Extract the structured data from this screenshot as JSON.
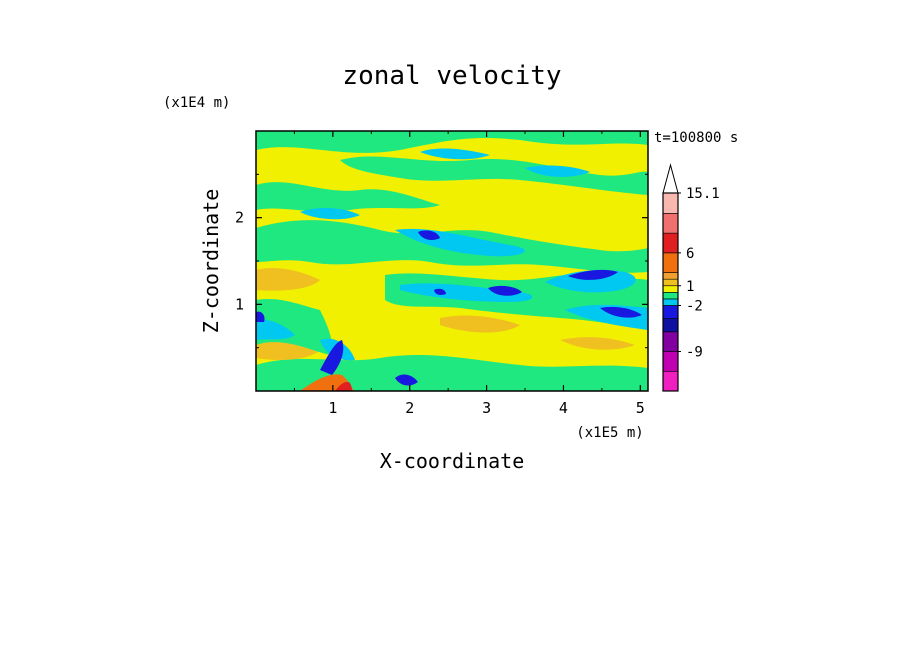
{
  "chart_data": {
    "type": "heatmap",
    "title": "zonal velocity",
    "xlabel": "X-coordinate",
    "ylabel": "Z-coordinate",
    "x_scale_label": "(x1E5 m)",
    "y_scale_label": "(x1E4 m)",
    "time_label": "t=100800 s",
    "xlim": [
      0,
      5.1
    ],
    "ylim": [
      0,
      3.0
    ],
    "x_ticks": [
      1,
      2,
      3,
      4,
      5
    ],
    "y_ticks": [
      1,
      2
    ],
    "colorbar": {
      "labels": [
        {
          "text": "15.1",
          "value": 15.1
        },
        {
          "text": "6",
          "value": 6
        },
        {
          "text": "1",
          "value": 1
        },
        {
          "text": "-2",
          "value": -2
        },
        {
          "text": "-9",
          "value": -9
        }
      ],
      "bands": [
        {
          "from": -15,
          "to": -12,
          "color": "#f020c0"
        },
        {
          "from": -12,
          "to": -9,
          "color": "#c000b0"
        },
        {
          "from": -9,
          "to": -6,
          "color": "#8000a0"
        },
        {
          "from": -6,
          "to": -4,
          "color": "#1010a0"
        },
        {
          "from": -4,
          "to": -2,
          "color": "#1818e0"
        },
        {
          "from": -2,
          "to": -1,
          "color": "#00c8f0"
        },
        {
          "from": -1,
          "to": 0,
          "color": "#20e880"
        },
        {
          "from": 0,
          "to": 1,
          "color": "#f0f000"
        },
        {
          "from": 1,
          "to": 2,
          "color": "#f0c020"
        },
        {
          "from": 2,
          "to": 3,
          "color": "#f0a030"
        },
        {
          "from": 3,
          "to": 6,
          "color": "#f07010"
        },
        {
          "from": 6,
          "to": 9,
          "color": "#e02020"
        },
        {
          "from": 9,
          "to": 12,
          "color": "#f07070"
        },
        {
          "from": 12,
          "to": 15.1,
          "color": "#f8b8b0"
        }
      ],
      "extend_max_color": "#ffffff"
    }
  }
}
